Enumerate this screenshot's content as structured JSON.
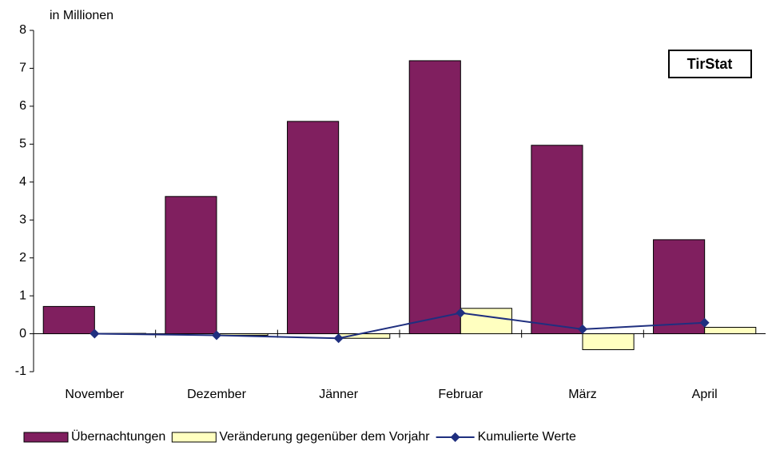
{
  "chart_data": {
    "type": "bar",
    "y_label": "in Millionen",
    "annotation": "TirStat",
    "categories": [
      "November",
      "Dezember",
      "Jänner",
      "Februar",
      "März",
      "April"
    ],
    "series": [
      {
        "name": "Übernachtungen",
        "type": "bar",
        "color": "#801f5f",
        "values": [
          0.72,
          3.62,
          5.6,
          7.2,
          4.97,
          2.48
        ]
      },
      {
        "name": "Veränderung gegenüber dem Vorjahr",
        "type": "bar",
        "color": "#ffffc0",
        "values": [
          0.01,
          -0.04,
          -0.12,
          0.67,
          -0.42,
          0.17
        ]
      },
      {
        "name": "Kumulierte Werte",
        "type": "line",
        "color": "#1f2f7f",
        "values": [
          0.0,
          -0.04,
          -0.12,
          0.55,
          0.12,
          0.29
        ]
      }
    ],
    "ylim": [
      -1,
      8
    ],
    "yticks": [
      -1,
      0,
      1,
      2,
      3,
      4,
      5,
      6,
      7,
      8
    ],
    "grid": false
  }
}
